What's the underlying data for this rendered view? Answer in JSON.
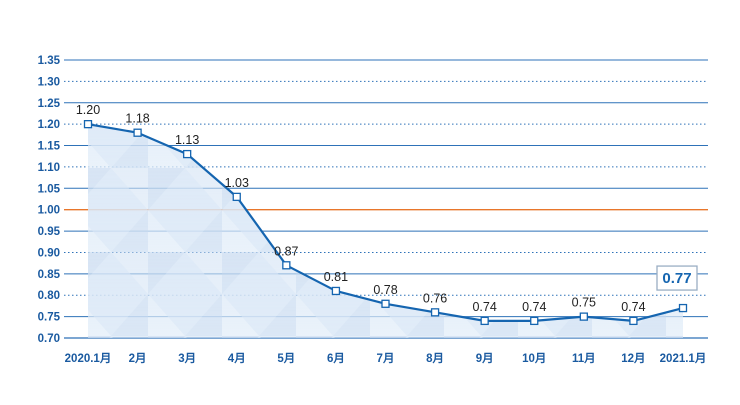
{
  "chart_data": {
    "type": "line",
    "categories": [
      "2020.1月",
      "2月",
      "3月",
      "4月",
      "5月",
      "6月",
      "7月",
      "8月",
      "9月",
      "10月",
      "11月",
      "12月",
      "2021.1月"
    ],
    "values": [
      1.2,
      1.18,
      1.13,
      1.03,
      0.87,
      0.81,
      0.78,
      0.76,
      0.74,
      0.74,
      0.75,
      0.74,
      0.77
    ],
    "data_labels": [
      "1.20",
      "1.18",
      "1.13",
      "1.03",
      "0.87",
      "0.81",
      "0.78",
      "0.76",
      "0.74",
      "0.74",
      "0.75",
      "0.74",
      "0.77"
    ],
    "highlight_label": "0.77",
    "ylim": [
      0.7,
      1.35
    ],
    "yticks": [
      0.7,
      0.75,
      0.8,
      0.85,
      0.9,
      0.95,
      1.0,
      1.05,
      1.1,
      1.15,
      1.2,
      1.25,
      1.3,
      1.35
    ],
    "ytick_labels": [
      "0.70",
      "0.75",
      "0.80",
      "0.85",
      "0.90",
      "0.95",
      "1.00",
      "1.05",
      "1.10",
      "1.15",
      "1.20",
      "1.25",
      "1.30",
      "1.35"
    ],
    "reference_line": 1.0,
    "grid": true,
    "colors": {
      "line": "#1565b0",
      "axis_text": "#1a5aa0",
      "grid_solid": "#2e72b8",
      "grid_dotted": "#2e72b8",
      "reference": "#e8762b",
      "area": "#cfe0f3"
    }
  }
}
